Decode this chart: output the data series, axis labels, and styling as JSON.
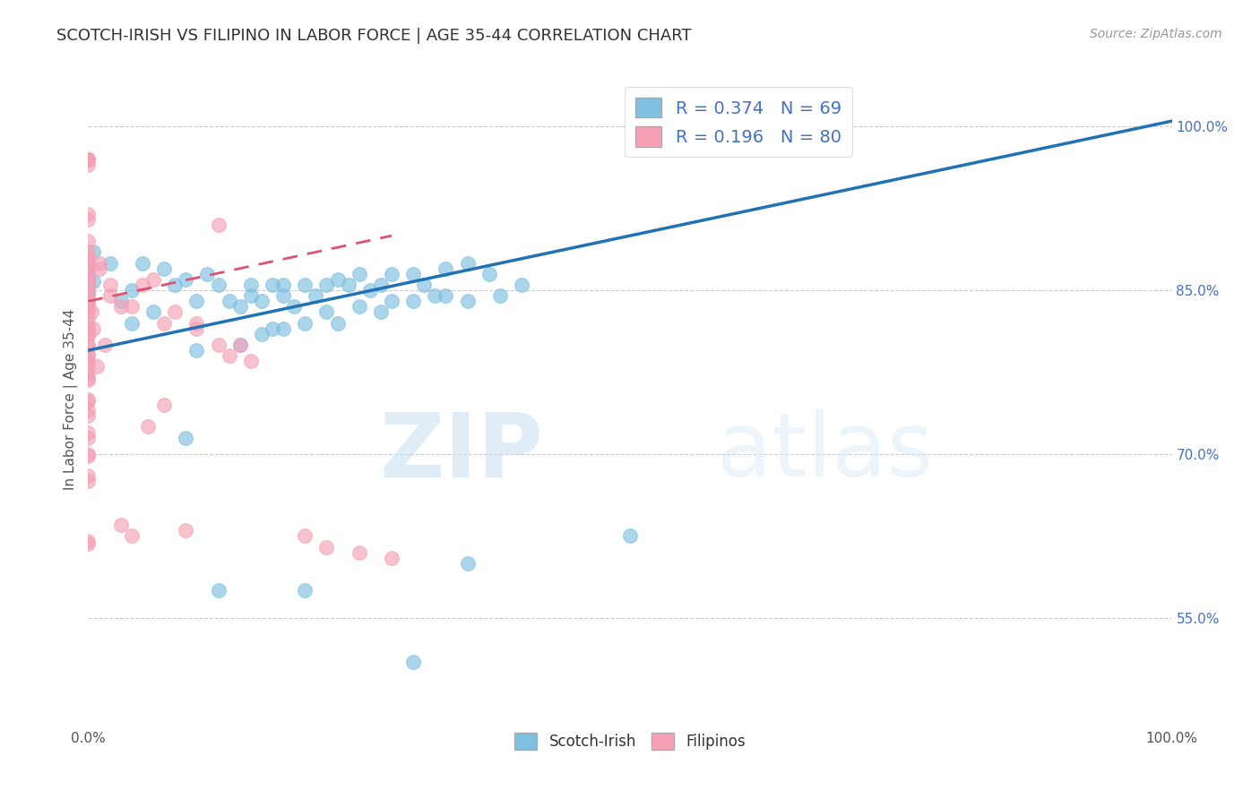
{
  "title": "SCOTCH-IRISH VS FILIPINO IN LABOR FORCE | AGE 35-44 CORRELATION CHART",
  "source": "Source: ZipAtlas.com",
  "ylabel": "In Labor Force | Age 35-44",
  "xlim": [
    0.0,
    1.0
  ],
  "ylim": [
    0.45,
    1.05
  ],
  "xtick_labels": [
    "0.0%",
    "100.0%"
  ],
  "ytick_positions": [
    0.55,
    0.7,
    0.85,
    1.0
  ],
  "ytick_labels": [
    "55.0%",
    "70.0%",
    "85.0%",
    "100.0%"
  ],
  "blue_R": "0.374",
  "blue_N": "69",
  "pink_R": "0.196",
  "pink_N": "80",
  "blue_color": "#7fbfdf",
  "pink_color": "#f5a0b5",
  "blue_line_color": "#2171b5",
  "pink_line_color": "#e05070",
  "watermark_zip": "ZIP",
  "watermark_atlas": "atlas",
  "blue_line_x": [
    0.0,
    1.0
  ],
  "blue_line_y": [
    0.795,
    1.005
  ],
  "pink_line_x": [
    0.0,
    0.28
  ],
  "pink_line_y": [
    0.84,
    0.9
  ],
  "blue_scatter": [
    [
      0.0,
      0.86
    ],
    [
      0.0,
      0.855
    ],
    [
      0.0,
      0.862
    ],
    [
      0.0,
      0.848
    ],
    [
      0.0,
      0.872
    ],
    [
      0.0,
      0.866
    ],
    [
      0.0,
      0.84
    ],
    [
      0.0,
      0.875
    ],
    [
      0.005,
      0.885
    ],
    [
      0.005,
      0.858
    ],
    [
      0.02,
      0.875
    ],
    [
      0.03,
      0.84
    ],
    [
      0.04,
      0.85
    ],
    [
      0.04,
      0.82
    ],
    [
      0.05,
      0.875
    ],
    [
      0.06,
      0.83
    ],
    [
      0.07,
      0.87
    ],
    [
      0.08,
      0.855
    ],
    [
      0.09,
      0.86
    ],
    [
      0.1,
      0.84
    ],
    [
      0.11,
      0.865
    ],
    [
      0.12,
      0.855
    ],
    [
      0.13,
      0.84
    ],
    [
      0.14,
      0.835
    ],
    [
      0.15,
      0.855
    ],
    [
      0.15,
      0.845
    ],
    [
      0.16,
      0.84
    ],
    [
      0.17,
      0.855
    ],
    [
      0.18,
      0.855
    ],
    [
      0.18,
      0.845
    ],
    [
      0.19,
      0.835
    ],
    [
      0.2,
      0.855
    ],
    [
      0.21,
      0.845
    ],
    [
      0.22,
      0.855
    ],
    [
      0.23,
      0.86
    ],
    [
      0.24,
      0.855
    ],
    [
      0.25,
      0.865
    ],
    [
      0.26,
      0.85
    ],
    [
      0.27,
      0.855
    ],
    [
      0.28,
      0.865
    ],
    [
      0.3,
      0.865
    ],
    [
      0.31,
      0.855
    ],
    [
      0.33,
      0.87
    ],
    [
      0.35,
      0.875
    ],
    [
      0.37,
      0.865
    ],
    [
      0.1,
      0.795
    ],
    [
      0.14,
      0.8
    ],
    [
      0.16,
      0.81
    ],
    [
      0.17,
      0.815
    ],
    [
      0.18,
      0.815
    ],
    [
      0.2,
      0.82
    ],
    [
      0.22,
      0.83
    ],
    [
      0.23,
      0.82
    ],
    [
      0.25,
      0.835
    ],
    [
      0.27,
      0.83
    ],
    [
      0.28,
      0.84
    ],
    [
      0.3,
      0.84
    ],
    [
      0.32,
      0.845
    ],
    [
      0.33,
      0.845
    ],
    [
      0.35,
      0.84
    ],
    [
      0.38,
      0.845
    ],
    [
      0.4,
      0.855
    ],
    [
      0.09,
      0.715
    ],
    [
      0.12,
      0.575
    ],
    [
      0.2,
      0.575
    ],
    [
      0.35,
      0.6
    ],
    [
      0.5,
      0.625
    ],
    [
      0.3,
      0.51
    ]
  ],
  "pink_scatter": [
    [
      0.0,
      0.97
    ],
    [
      0.0,
      0.97
    ],
    [
      0.0,
      0.97
    ],
    [
      0.0,
      0.97
    ],
    [
      0.0,
      0.965
    ],
    [
      0.0,
      0.97
    ],
    [
      0.0,
      0.915
    ],
    [
      0.0,
      0.92
    ],
    [
      0.0,
      0.895
    ],
    [
      0.0,
      0.885
    ],
    [
      0.0,
      0.875
    ],
    [
      0.0,
      0.88
    ],
    [
      0.0,
      0.88
    ],
    [
      0.0,
      0.865
    ],
    [
      0.0,
      0.86
    ],
    [
      0.0,
      0.87
    ],
    [
      0.0,
      0.855
    ],
    [
      0.0,
      0.85
    ],
    [
      0.0,
      0.858
    ],
    [
      0.0,
      0.84
    ],
    [
      0.0,
      0.838
    ],
    [
      0.0,
      0.845
    ],
    [
      0.0,
      0.83
    ],
    [
      0.0,
      0.825
    ],
    [
      0.0,
      0.835
    ],
    [
      0.0,
      0.82
    ],
    [
      0.0,
      0.815
    ],
    [
      0.0,
      0.81
    ],
    [
      0.0,
      0.808
    ],
    [
      0.0,
      0.8
    ],
    [
      0.0,
      0.798
    ],
    [
      0.0,
      0.79
    ],
    [
      0.0,
      0.785
    ],
    [
      0.0,
      0.792
    ],
    [
      0.0,
      0.78
    ],
    [
      0.0,
      0.775
    ],
    [
      0.0,
      0.77
    ],
    [
      0.0,
      0.768
    ],
    [
      0.0,
      0.75
    ],
    [
      0.0,
      0.748
    ],
    [
      0.0,
      0.74
    ],
    [
      0.0,
      0.735
    ],
    [
      0.0,
      0.72
    ],
    [
      0.0,
      0.715
    ],
    [
      0.0,
      0.7
    ],
    [
      0.0,
      0.698
    ],
    [
      0.0,
      0.68
    ],
    [
      0.0,
      0.675
    ],
    [
      0.0,
      0.62
    ],
    [
      0.0,
      0.618
    ],
    [
      0.01,
      0.875
    ],
    [
      0.01,
      0.87
    ],
    [
      0.02,
      0.855
    ],
    [
      0.02,
      0.845
    ],
    [
      0.03,
      0.835
    ],
    [
      0.04,
      0.835
    ],
    [
      0.05,
      0.855
    ],
    [
      0.06,
      0.86
    ],
    [
      0.07,
      0.82
    ],
    [
      0.08,
      0.83
    ],
    [
      0.1,
      0.82
    ],
    [
      0.1,
      0.815
    ],
    [
      0.12,
      0.91
    ],
    [
      0.12,
      0.8
    ],
    [
      0.13,
      0.79
    ],
    [
      0.14,
      0.8
    ],
    [
      0.15,
      0.785
    ],
    [
      0.03,
      0.635
    ],
    [
      0.04,
      0.625
    ],
    [
      0.2,
      0.625
    ],
    [
      0.22,
      0.615
    ],
    [
      0.25,
      0.61
    ],
    [
      0.28,
      0.605
    ],
    [
      0.055,
      0.725
    ],
    [
      0.07,
      0.745
    ],
    [
      0.09,
      0.63
    ],
    [
      0.015,
      0.8
    ],
    [
      0.008,
      0.78
    ],
    [
      0.005,
      0.815
    ],
    [
      0.003,
      0.83
    ]
  ]
}
